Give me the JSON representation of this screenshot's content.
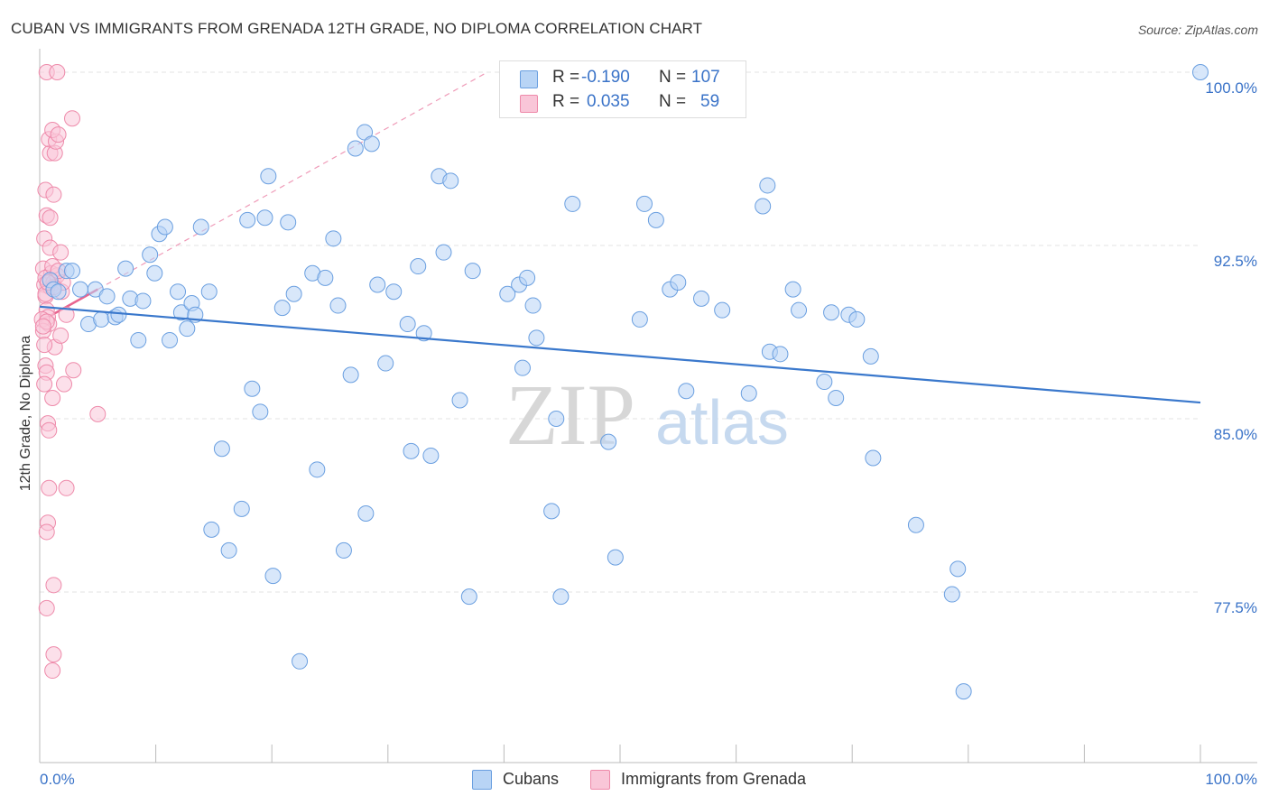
{
  "title": "CUBAN VS IMMIGRANTS FROM GRENADA 12TH GRADE, NO DIPLOMA CORRELATION CHART",
  "source": "Source: ZipAtlas.com",
  "watermark": {
    "zip": "ZIP",
    "atlas": "atlas"
  },
  "legend": {
    "r_label": "R =",
    "n_label": "N =",
    "cubans": {
      "r": "-0.190",
      "n": "107"
    },
    "grenada": {
      "r": "0.035",
      "n": "59"
    }
  },
  "colors": {
    "blue_fill": "#b8d4f5",
    "blue_stroke": "#6a9fe0",
    "blue_line": "#3a78cc",
    "pink_fill": "#f9c6d8",
    "pink_stroke": "#ee8aaa",
    "pink_line": "#e8658f",
    "tick_label": "#3a73c8"
  },
  "chart_data": {
    "type": "scatter",
    "title": "CUBAN VS IMMIGRANTS FROM GRENADA 12TH GRADE, NO DIPLOMA CORRELATION CHART",
    "xlabel": "",
    "ylabel": "12th Grade, No Diploma",
    "xlim": [
      0,
      100
    ],
    "ylim": [
      71.0,
      100.6
    ],
    "x_ticks": [
      "0.0%",
      "100.0%"
    ],
    "y_ticks": [
      {
        "value": 100.0,
        "label": "100.0%"
      },
      {
        "value": 92.5,
        "label": "92.5%"
      },
      {
        "value": 85.0,
        "label": "85.0%"
      },
      {
        "value": 77.5,
        "label": "77.5%"
      }
    ],
    "grid": true,
    "legend_position": "top-center",
    "series": [
      {
        "name": "Cubans",
        "r": -0.19,
        "n": 107,
        "trend": {
          "x": [
            0,
            100
          ],
          "y": [
            89.85,
            85.7
          ]
        },
        "points": [
          [
            0.9,
            91.0
          ],
          [
            1.2,
            90.6
          ],
          [
            1.6,
            90.5
          ],
          [
            2.3,
            91.4
          ],
          [
            2.8,
            91.4
          ],
          [
            3.5,
            90.6
          ],
          [
            4.2,
            89.1
          ],
          [
            4.8,
            90.6
          ],
          [
            5.3,
            89.3
          ],
          [
            5.8,
            90.3
          ],
          [
            6.5,
            89.4
          ],
          [
            6.8,
            89.5
          ],
          [
            7.4,
            91.5
          ],
          [
            7.8,
            90.2
          ],
          [
            8.5,
            88.4
          ],
          [
            8.9,
            90.1
          ],
          [
            9.5,
            92.1
          ],
          [
            9.9,
            91.3
          ],
          [
            10.3,
            93.0
          ],
          [
            10.8,
            93.3
          ],
          [
            11.2,
            88.4
          ],
          [
            11.9,
            90.5
          ],
          [
            12.2,
            89.6
          ],
          [
            12.7,
            88.9
          ],
          [
            13.1,
            90.0
          ],
          [
            13.4,
            89.5
          ],
          [
            13.9,
            93.3
          ],
          [
            14.6,
            90.5
          ],
          [
            14.8,
            80.2
          ],
          [
            15.7,
            83.7
          ],
          [
            16.3,
            79.3
          ],
          [
            17.4,
            81.1
          ],
          [
            17.9,
            93.6
          ],
          [
            18.3,
            86.3
          ],
          [
            19.0,
            85.3
          ],
          [
            19.4,
            93.7
          ],
          [
            19.7,
            95.5
          ],
          [
            20.1,
            78.2
          ],
          [
            20.9,
            89.8
          ],
          [
            21.4,
            93.5
          ],
          [
            21.9,
            90.4
          ],
          [
            22.4,
            74.5
          ],
          [
            23.5,
            91.3
          ],
          [
            23.9,
            82.8
          ],
          [
            24.6,
            91.1
          ],
          [
            25.3,
            92.8
          ],
          [
            25.7,
            89.9
          ],
          [
            26.2,
            79.3
          ],
          [
            26.8,
            86.9
          ],
          [
            27.2,
            96.7
          ],
          [
            28.0,
            97.4
          ],
          [
            28.1,
            80.9
          ],
          [
            28.6,
            96.9
          ],
          [
            29.1,
            90.8
          ],
          [
            29.8,
            87.4
          ],
          [
            30.5,
            90.5
          ],
          [
            31.7,
            89.1
          ],
          [
            32.0,
            83.6
          ],
          [
            32.6,
            91.6
          ],
          [
            33.1,
            88.7
          ],
          [
            33.7,
            83.4
          ],
          [
            34.4,
            95.5
          ],
          [
            34.8,
            92.2
          ],
          [
            35.4,
            95.3
          ],
          [
            36.2,
            85.8
          ],
          [
            37.0,
            77.3
          ],
          [
            37.3,
            91.4
          ],
          [
            40.3,
            90.4
          ],
          [
            41.3,
            90.8
          ],
          [
            41.6,
            87.2
          ],
          [
            42.0,
            91.1
          ],
          [
            42.5,
            89.9
          ],
          [
            42.8,
            88.5
          ],
          [
            44.1,
            81.0
          ],
          [
            44.5,
            85.0
          ],
          [
            44.9,
            77.3
          ],
          [
            45.9,
            94.3
          ],
          [
            49.0,
            84.0
          ],
          [
            49.6,
            79.0
          ],
          [
            51.7,
            89.3
          ],
          [
            52.1,
            94.3
          ],
          [
            53.1,
            93.6
          ],
          [
            54.3,
            90.6
          ],
          [
            55.0,
            90.9
          ],
          [
            55.7,
            86.2
          ],
          [
            57.0,
            90.2
          ],
          [
            58.8,
            89.7
          ],
          [
            61.1,
            86.1
          ],
          [
            62.3,
            94.2
          ],
          [
            62.7,
            95.1
          ],
          [
            62.9,
            87.9
          ],
          [
            63.8,
            87.8
          ],
          [
            64.9,
            90.6
          ],
          [
            65.4,
            89.7
          ],
          [
            67.6,
            86.6
          ],
          [
            68.2,
            89.6
          ],
          [
            68.6,
            85.9
          ],
          [
            69.7,
            89.5
          ],
          [
            70.4,
            89.3
          ],
          [
            71.6,
            87.7
          ],
          [
            71.8,
            83.3
          ],
          [
            75.5,
            80.4
          ],
          [
            78.6,
            77.4
          ],
          [
            79.1,
            78.5
          ],
          [
            79.6,
            73.2
          ],
          [
            100.0,
            100.0
          ]
        ]
      },
      {
        "name": "Immigrants from Grenada",
        "r": 0.035,
        "n": 59,
        "trend": {
          "x": [
            0,
            5.0
          ],
          "y": [
            89.2,
            90.6
          ]
        },
        "points": [
          [
            0.3,
            91.5
          ],
          [
            0.4,
            90.8
          ],
          [
            0.5,
            90.3
          ],
          [
            0.6,
            89.7
          ],
          [
            0.7,
            89.4
          ],
          [
            0.8,
            89.1
          ],
          [
            0.2,
            89.3
          ],
          [
            0.3,
            88.8
          ],
          [
            0.6,
            89.2
          ],
          [
            0.9,
            90.7
          ],
          [
            1.0,
            91.3
          ],
          [
            0.5,
            91.1
          ],
          [
            1.2,
            90.9
          ],
          [
            1.5,
            91.2
          ],
          [
            1.1,
            91.6
          ],
          [
            0.4,
            92.8
          ],
          [
            0.9,
            92.4
          ],
          [
            1.8,
            92.2
          ],
          [
            0.6,
            93.8
          ],
          [
            0.9,
            93.7
          ],
          [
            0.5,
            94.9
          ],
          [
            1.2,
            94.7
          ],
          [
            0.9,
            96.5
          ],
          [
            1.3,
            96.5
          ],
          [
            0.8,
            97.1
          ],
          [
            1.4,
            97.0
          ],
          [
            1.1,
            97.5
          ],
          [
            1.6,
            97.3
          ],
          [
            2.8,
            98.0
          ],
          [
            0.6,
            100.0
          ],
          [
            1.5,
            100.0
          ],
          [
            1.3,
            88.1
          ],
          [
            0.5,
            87.3
          ],
          [
            0.6,
            87.0
          ],
          [
            0.4,
            86.5
          ],
          [
            2.1,
            86.5
          ],
          [
            2.9,
            87.1
          ],
          [
            1.1,
            85.9
          ],
          [
            0.7,
            84.8
          ],
          [
            0.8,
            84.5
          ],
          [
            5.0,
            85.2
          ],
          [
            0.8,
            82.0
          ],
          [
            2.3,
            82.0
          ],
          [
            0.7,
            80.5
          ],
          [
            0.6,
            80.1
          ],
          [
            1.2,
            77.8
          ],
          [
            0.6,
            76.8
          ],
          [
            1.2,
            74.8
          ],
          [
            1.1,
            74.1
          ],
          [
            1.9,
            90.5
          ],
          [
            2.3,
            89.5
          ],
          [
            2.0,
            90.9
          ],
          [
            1.6,
            91.4
          ],
          [
            0.5,
            90.4
          ],
          [
            0.3,
            89.0
          ],
          [
            1.2,
            90.7
          ],
          [
            0.7,
            90.9
          ],
          [
            1.8,
            88.6
          ],
          [
            0.4,
            88.2
          ]
        ]
      }
    ]
  },
  "bottom_legend": {
    "cubans": "Cubans",
    "grenada": "Immigrants from Grenada"
  }
}
